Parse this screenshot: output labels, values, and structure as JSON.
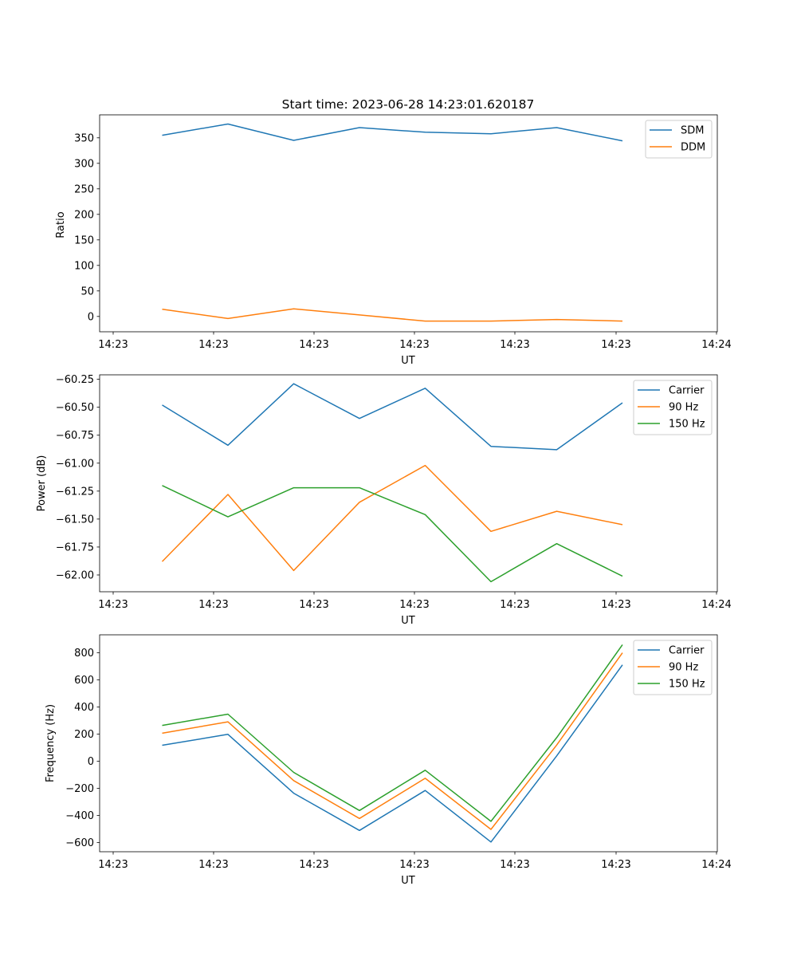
{
  "chart_data": [
    {
      "type": "line",
      "title": "Start time: 2023-06-28 14:23:01.620187",
      "xlabel": "UT",
      "ylabel": "Ratio",
      "x_tick_labels": [
        "14:23",
        "14:23",
        "14:23",
        "14:23",
        "14:23",
        "14:23",
        "14:24"
      ],
      "ylim": [
        -30,
        395
      ],
      "y_ticks": [
        0,
        50,
        100,
        150,
        200,
        250,
        300,
        350
      ],
      "y_tick_labels": [
        "0",
        "50",
        "100",
        "150",
        "200",
        "250",
        "300",
        "350"
      ],
      "legend_position": "top-right",
      "grid": false,
      "series": [
        {
          "name": "SDM",
          "color": "#1f77b4",
          "values": [
            355,
            377,
            345,
            370,
            361,
            358,
            370,
            344
          ]
        },
        {
          "name": "DDM",
          "color": "#ff7f0e",
          "values": [
            14,
            -4,
            15,
            3,
            -9,
            -9,
            -6,
            -9
          ]
        }
      ]
    },
    {
      "type": "line",
      "title": "",
      "xlabel": "UT",
      "ylabel": "Power (dB)",
      "x_tick_labels": [
        "14:23",
        "14:23",
        "14:23",
        "14:23",
        "14:23",
        "14:23",
        "14:24"
      ],
      "ylim": [
        -62.15,
        -60.21
      ],
      "y_ticks": [
        -62.0,
        -61.75,
        -61.5,
        -61.25,
        -61.0,
        -60.75,
        -60.5,
        -60.25
      ],
      "y_tick_labels": [
        "−62.00",
        "−61.75",
        "−61.50",
        "−61.25",
        "−61.00",
        "−60.75",
        "−60.50",
        "−60.25"
      ],
      "legend_position": "top-right",
      "grid": false,
      "series": [
        {
          "name": "Carrier",
          "color": "#1f77b4",
          "values": [
            -60.48,
            -60.84,
            -60.29,
            -60.6,
            -60.33,
            -60.85,
            -60.88,
            -60.46
          ]
        },
        {
          "name": "90 Hz",
          "color": "#ff7f0e",
          "values": [
            -61.88,
            -61.28,
            -61.96,
            -61.35,
            -61.02,
            -61.61,
            -61.43,
            -61.55
          ]
        },
        {
          "name": "150 Hz",
          "color": "#2ca02c",
          "values": [
            -61.2,
            -61.48,
            -61.22,
            -61.22,
            -61.46,
            -62.06,
            -61.72,
            -62.01
          ]
        }
      ]
    },
    {
      "type": "line",
      "title": "",
      "xlabel": "UT",
      "ylabel": "Frequency (Hz)",
      "x_tick_labels": [
        "14:23",
        "14:23",
        "14:23",
        "14:23",
        "14:23",
        "14:23",
        "14:24"
      ],
      "ylim": [
        -667,
        933
      ],
      "y_ticks": [
        -600,
        -400,
        -200,
        0,
        200,
        400,
        600,
        800
      ],
      "y_tick_labels": [
        "−600",
        "−400",
        "−200",
        "0",
        "200",
        "400",
        "600",
        "800"
      ],
      "legend_position": "top-right",
      "grid": false,
      "series": [
        {
          "name": "Carrier",
          "color": "#1f77b4",
          "values": [
            118,
            199,
            -235,
            -510,
            -215,
            -595,
            40,
            711
          ]
        },
        {
          "name": "90 Hz",
          "color": "#ff7f0e",
          "values": [
            207,
            291,
            -142,
            -422,
            -125,
            -502,
            120,
            800
          ]
        },
        {
          "name": "150 Hz",
          "color": "#2ca02c",
          "values": [
            265,
            348,
            -82,
            -363,
            -66,
            -443,
            175,
            860
          ]
        }
      ]
    }
  ]
}
